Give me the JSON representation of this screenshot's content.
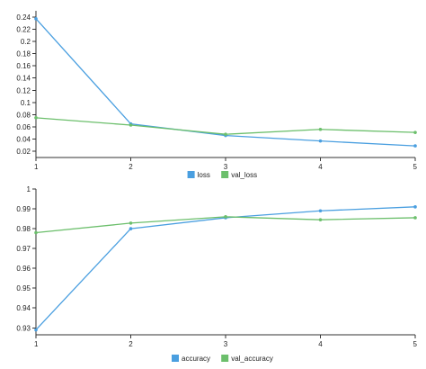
{
  "chart_data": [
    {
      "type": "line",
      "x": [
        1,
        2,
        3,
        4,
        5
      ],
      "xlim": [
        1,
        5
      ],
      "ylim": [
        0.01,
        0.25
      ],
      "x_ticks": [
        "1",
        "2",
        "3",
        "4",
        "5"
      ],
      "y_ticks": [
        "0.02",
        "0.04",
        "0.06",
        "0.08",
        "0.1",
        "0.12",
        "0.14",
        "0.16",
        "0.18",
        "0.2",
        "0.22",
        "0.24"
      ],
      "y_tick_values": [
        0.02,
        0.04,
        0.06,
        0.08,
        0.1,
        0.12,
        0.14,
        0.16,
        0.18,
        0.2,
        0.22,
        0.24
      ],
      "series": [
        {
          "name": "loss",
          "color": "#4a9fe0",
          "values": [
            0.237,
            0.065,
            0.046,
            0.037,
            0.029
          ]
        },
        {
          "name": "val_loss",
          "color": "#6cbf6c",
          "values": [
            0.075,
            0.063,
            0.048,
            0.056,
            0.051
          ]
        }
      ],
      "legend_position": "bottom-center",
      "grid": false
    },
    {
      "type": "line",
      "x": [
        1,
        2,
        3,
        4,
        5
      ],
      "xlim": [
        1,
        5
      ],
      "ylim": [
        0.9265,
        1.0
      ],
      "x_ticks": [
        "1",
        "2",
        "3",
        "4",
        "5"
      ],
      "y_ticks": [
        "0.93",
        "0.94",
        "0.95",
        "0.96",
        "0.97",
        "0.98",
        "0.99",
        "1"
      ],
      "y_tick_values": [
        0.93,
        0.94,
        0.95,
        0.96,
        0.97,
        0.98,
        0.99,
        1.0
      ],
      "series": [
        {
          "name": "accuracy",
          "color": "#4a9fe0",
          "values": [
            0.929,
            0.98,
            0.9855,
            0.989,
            0.991
          ]
        },
        {
          "name": "val_accuracy",
          "color": "#6cbf6c",
          "values": [
            0.978,
            0.9828,
            0.986,
            0.9845,
            0.9855
          ]
        }
      ],
      "legend_position": "bottom-center",
      "grid": false
    }
  ]
}
